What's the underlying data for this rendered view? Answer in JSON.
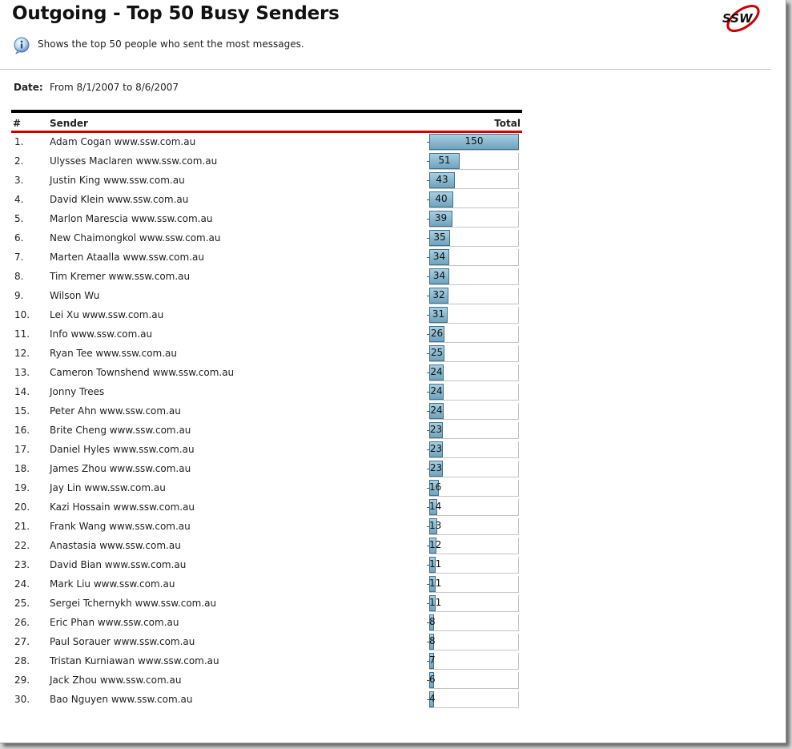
{
  "report": {
    "title": "Outgoing - Top 50 Busy Senders",
    "description": "Shows the top 50 people who sent the most messages.",
    "date_label": "Date:",
    "date_value": "From 8/1/2007 to 8/6/2007",
    "logo_text": "SSW"
  },
  "table": {
    "columns": {
      "num": "#",
      "sender": "Sender",
      "total": "Total"
    },
    "rows": [
      {
        "num": "1.",
        "sender": "Adam Cogan www.ssw.com.au",
        "total": 150
      },
      {
        "num": "2.",
        "sender": "Ulysses Maclaren www.ssw.com.au",
        "total": 51
      },
      {
        "num": "3.",
        "sender": "Justin King www.ssw.com.au",
        "total": 43
      },
      {
        "num": "4.",
        "sender": "David Klein www.ssw.com.au",
        "total": 40
      },
      {
        "num": "5.",
        "sender": "Marlon Marescia www.ssw.com.au",
        "total": 39
      },
      {
        "num": "6.",
        "sender": "New Chaimongkol www.ssw.com.au",
        "total": 35
      },
      {
        "num": "7.",
        "sender": "Marten Ataalla www.ssw.com.au",
        "total": 34
      },
      {
        "num": "8.",
        "sender": "Tim Kremer www.ssw.com.au",
        "total": 34
      },
      {
        "num": "9.",
        "sender": "Wilson Wu",
        "total": 32
      },
      {
        "num": "10.",
        "sender": "Lei Xu www.ssw.com.au",
        "total": 31
      },
      {
        "num": "11.",
        "sender": "Info www.ssw.com.au",
        "total": 26
      },
      {
        "num": "12.",
        "sender": "Ryan Tee www.ssw.com.au",
        "total": 25
      },
      {
        "num": "13.",
        "sender": "Cameron Townshend www.ssw.com.au",
        "total": 24
      },
      {
        "num": "14.",
        "sender": "Jonny Trees",
        "total": 24
      },
      {
        "num": "15.",
        "sender": "Peter Ahn www.ssw.com.au",
        "total": 24
      },
      {
        "num": "16.",
        "sender": "Brite Cheng www.ssw.com.au",
        "total": 23
      },
      {
        "num": "17.",
        "sender": "Daniel Hyles www.ssw.com.au",
        "total": 23
      },
      {
        "num": "18.",
        "sender": "James Zhou www.ssw.com.au",
        "total": 23
      },
      {
        "num": "19.",
        "sender": "Jay Lin www.ssw.com.au",
        "total": 16
      },
      {
        "num": "20.",
        "sender": "Kazi Hossain www.ssw.com.au",
        "total": 14
      },
      {
        "num": "21.",
        "sender": "Frank Wang www.ssw.com.au",
        "total": 13
      },
      {
        "num": "22.",
        "sender": "Anastasia www.ssw.com.au",
        "total": 12
      },
      {
        "num": "23.",
        "sender": "David Bian www.ssw.com.au",
        "total": 11
      },
      {
        "num": "24.",
        "sender": "Mark Liu www.ssw.com.au",
        "total": 11
      },
      {
        "num": "25.",
        "sender": "Sergei Tchernykh www.ssw.com.au",
        "total": 11
      },
      {
        "num": "26.",
        "sender": "Eric Phan www.ssw.com.au",
        "total": 8
      },
      {
        "num": "27.",
        "sender": "Paul Sorauer www.ssw.com.au",
        "total": 8
      },
      {
        "num": "28.",
        "sender": "Tristan Kurniawan www.ssw.com.au",
        "total": 7
      },
      {
        "num": "29.",
        "sender": "Jack Zhou www.ssw.com.au",
        "total": 6
      },
      {
        "num": "30.",
        "sender": "Bao Nguyen www.ssw.com.au",
        "total": 4
      }
    ]
  },
  "chart_data": {
    "type": "bar",
    "categories": [
      "Adam Cogan www.ssw.com.au",
      "Ulysses Maclaren www.ssw.com.au",
      "Justin King www.ssw.com.au",
      "David Klein www.ssw.com.au",
      "Marlon Marescia www.ssw.com.au",
      "New Chaimongkol www.ssw.com.au",
      "Marten Ataalla www.ssw.com.au",
      "Tim Kremer www.ssw.com.au",
      "Wilson Wu",
      "Lei Xu www.ssw.com.au",
      "Info www.ssw.com.au",
      "Ryan Tee www.ssw.com.au",
      "Cameron Townshend www.ssw.com.au",
      "Jonny Trees",
      "Peter Ahn www.ssw.com.au",
      "Brite Cheng www.ssw.com.au",
      "Daniel Hyles www.ssw.com.au",
      "James Zhou www.ssw.com.au",
      "Jay Lin www.ssw.com.au",
      "Kazi Hossain www.ssw.com.au",
      "Frank Wang www.ssw.com.au",
      "Anastasia www.ssw.com.au",
      "David Bian www.ssw.com.au",
      "Mark Liu www.ssw.com.au",
      "Sergei Tchernykh www.ssw.com.au",
      "Eric Phan www.ssw.com.au",
      "Paul Sorauer www.ssw.com.au",
      "Tristan Kurniawan www.ssw.com.au",
      "Jack Zhou www.ssw.com.au",
      "Bao Nguyen www.ssw.com.au"
    ],
    "values": [
      150,
      51,
      43,
      40,
      39,
      35,
      34,
      34,
      32,
      31,
      26,
      25,
      24,
      24,
      24,
      23,
      23,
      23,
      16,
      14,
      13,
      12,
      11,
      11,
      11,
      8,
      8,
      7,
      6,
      4
    ],
    "title": "",
    "xlabel": "",
    "ylabel": "Total",
    "ylim": [
      0,
      150
    ],
    "orientation": "horizontal",
    "bar_color": "#8dbbd1"
  }
}
